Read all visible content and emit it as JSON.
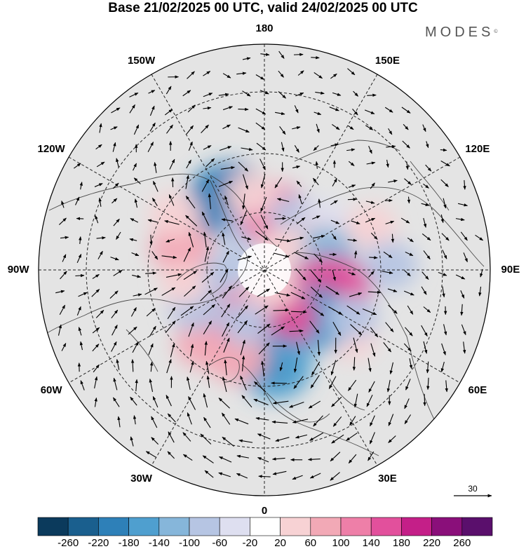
{
  "title": "Base 21/02/2025 00 UTC, valid 24/02/2025 00 UTC",
  "brand": {
    "name": "MODES",
    "mark": "©"
  },
  "map": {
    "projection": "north-polar-stereographic",
    "longitude_labels": [
      {
        "text": "180",
        "lon": 180
      },
      {
        "text": "150E",
        "lon": 150
      },
      {
        "text": "120E",
        "lon": 120
      },
      {
        "text": "90E",
        "lon": 90
      },
      {
        "text": "60E",
        "lon": 60
      },
      {
        "text": "30E",
        "lon": 30
      },
      {
        "text": "0",
        "lon": 0
      },
      {
        "text": "30W",
        "lon": -30
      },
      {
        "text": "60W",
        "lon": -60
      },
      {
        "text": "90W",
        "lon": -90
      },
      {
        "text": "120W",
        "lon": -120
      },
      {
        "text": "150W",
        "lon": -150
      }
    ],
    "reference_vector": "30",
    "anomalies": [
      {
        "lon": -154,
        "lat": 52,
        "value": -200
      },
      {
        "lon": -160,
        "lat": 68,
        "value": -60
      },
      {
        "lon": 170,
        "lat": 62,
        "value": 140
      },
      {
        "lon": -170,
        "lat": 52,
        "value": 60
      },
      {
        "lon": 150,
        "lat": 60,
        "value": -60
      },
      {
        "lon": 130,
        "lat": 52,
        "value": -40
      },
      {
        "lon": 112,
        "lat": 36,
        "value": 60
      },
      {
        "lon": 120,
        "lat": 60,
        "value": 40
      },
      {
        "lon": 104,
        "lat": 60,
        "value": -120
      },
      {
        "lon": 92,
        "lat": 32,
        "value": -80
      },
      {
        "lon": 72,
        "lat": 56,
        "value": 180
      },
      {
        "lon": 52,
        "lat": 38,
        "value": 60
      },
      {
        "lon": 44,
        "lat": 56,
        "value": -160
      },
      {
        "lon": 62,
        "lat": 42,
        "value": -60
      },
      {
        "lon": 16,
        "lat": 66,
        "value": 160
      },
      {
        "lon": 6,
        "lat": 43,
        "value": -150
      },
      {
        "lon": -18,
        "lat": 46,
        "value": 100
      },
      {
        "lon": -40,
        "lat": 44,
        "value": 80
      },
      {
        "lon": -36,
        "lat": 64,
        "value": 120
      },
      {
        "lon": -20,
        "lat": 62,
        "value": -60
      },
      {
        "lon": -62,
        "lat": 52,
        "value": -80
      },
      {
        "lon": -90,
        "lat": 72,
        "value": -60
      },
      {
        "lon": -105,
        "lat": 48,
        "value": 100
      },
      {
        "lon": -122,
        "lat": 40,
        "value": 60
      },
      {
        "lon": -80,
        "lat": 50,
        "value": 40
      },
      {
        "lon": 20,
        "lat": 80,
        "value": 60
      },
      {
        "lon": 140,
        "lat": 75,
        "value": 40
      }
    ],
    "vortices": [
      {
        "lon": -154,
        "lat": 52,
        "sense": "cyclonic"
      },
      {
        "lon": 44,
        "lat": 56,
        "sense": "cyclonic"
      },
      {
        "lon": 6,
        "lat": 43,
        "sense": "cyclonic"
      },
      {
        "lon": 72,
        "lat": 56,
        "sense": "anticyclonic"
      },
      {
        "lon": -105,
        "lat": 48,
        "sense": "anticyclonic"
      },
      {
        "lon": 170,
        "lat": 62,
        "sense": "anticyclonic"
      }
    ]
  },
  "colorbar": {
    "colors": [
      "#0b3a5c",
      "#1a5f8e",
      "#2e80b8",
      "#4f9fcf",
      "#86b6da",
      "#b6c5e3",
      "#dedff0",
      "#ffffff",
      "#f7d2d4",
      "#f2a9b6",
      "#ee7fa8",
      "#e2509c",
      "#c41f88",
      "#8a0f7a",
      "#5a0f6c"
    ],
    "ticks": [
      "-260",
      "-220",
      "-180",
      "-140",
      "-100",
      "-60",
      "-20",
      "20",
      "60",
      "100",
      "140",
      "180",
      "220",
      "260"
    ]
  }
}
